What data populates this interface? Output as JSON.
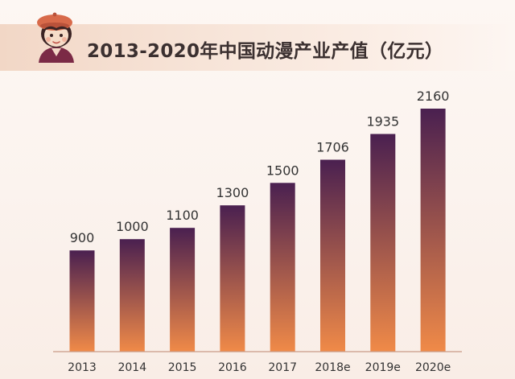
{
  "header": {
    "title": "2013-2020年中国动漫产业产值（亿元）"
  },
  "colors": {
    "bar_top": "#4a2050",
    "bar_bottom": "#f08a48",
    "baseline": "#c99a86",
    "title_band": "#f2d7c6"
  },
  "icons": {
    "avatar": "cartoon-girl-beret-icon"
  },
  "chart_data": {
    "type": "bar",
    "title": "2013-2020年中国动漫产业产值（亿元）",
    "categories": [
      "2013",
      "2014",
      "2015",
      "2016",
      "2017",
      "2018e",
      "2019e",
      "2020e"
    ],
    "values": [
      900,
      1000,
      1100,
      1300,
      1500,
      1706,
      1935,
      2160
    ],
    "value_labels": [
      "900",
      "1000",
      "1100",
      "1300",
      "1500",
      "1706",
      "1935",
      "2160"
    ],
    "xlabel": "",
    "ylabel": "",
    "ylim": [
      0,
      2160
    ],
    "grid": false,
    "legend": "none"
  }
}
